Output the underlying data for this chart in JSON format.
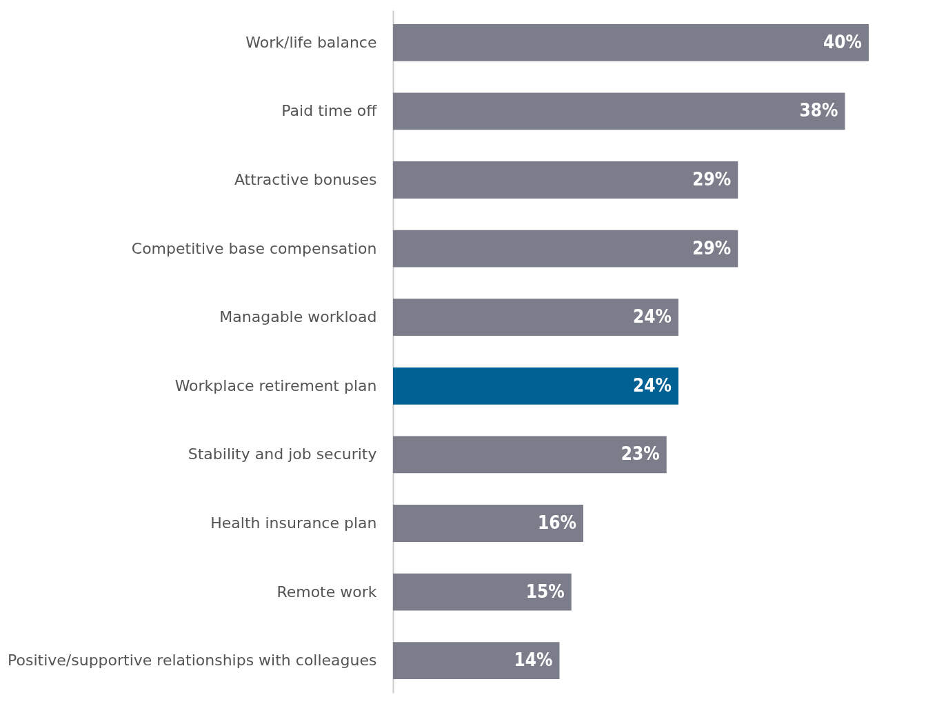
{
  "chart_data": {
    "type": "bar",
    "orientation": "horizontal",
    "categories": [
      "Work/life balance",
      "Paid time off",
      "Attractive bonuses",
      "Competitive base compensation",
      "Managable workload",
      "Workplace retirement plan",
      "Stability and job security",
      "Health insurance plan",
      "Remote work",
      "Positive/supportive relationships with colleagues"
    ],
    "values": [
      40,
      38,
      29,
      29,
      24,
      24,
      23,
      16,
      15,
      14
    ],
    "value_labels": [
      "40%",
      "38%",
      "29%",
      "29%",
      "24%",
      "24%",
      "23%",
      "16%",
      "15%",
      "14%"
    ],
    "colors": [
      "#7b7e8a",
      "#7b7e8a",
      "#7b7e8a",
      "#7b7e8a",
      "#7b7e8a",
      "#006194",
      "#7b7e8a",
      "#7b7e8a",
      "#7b7e8a",
      "#7b7e8a"
    ],
    "grid": false,
    "legend": false
  }
}
